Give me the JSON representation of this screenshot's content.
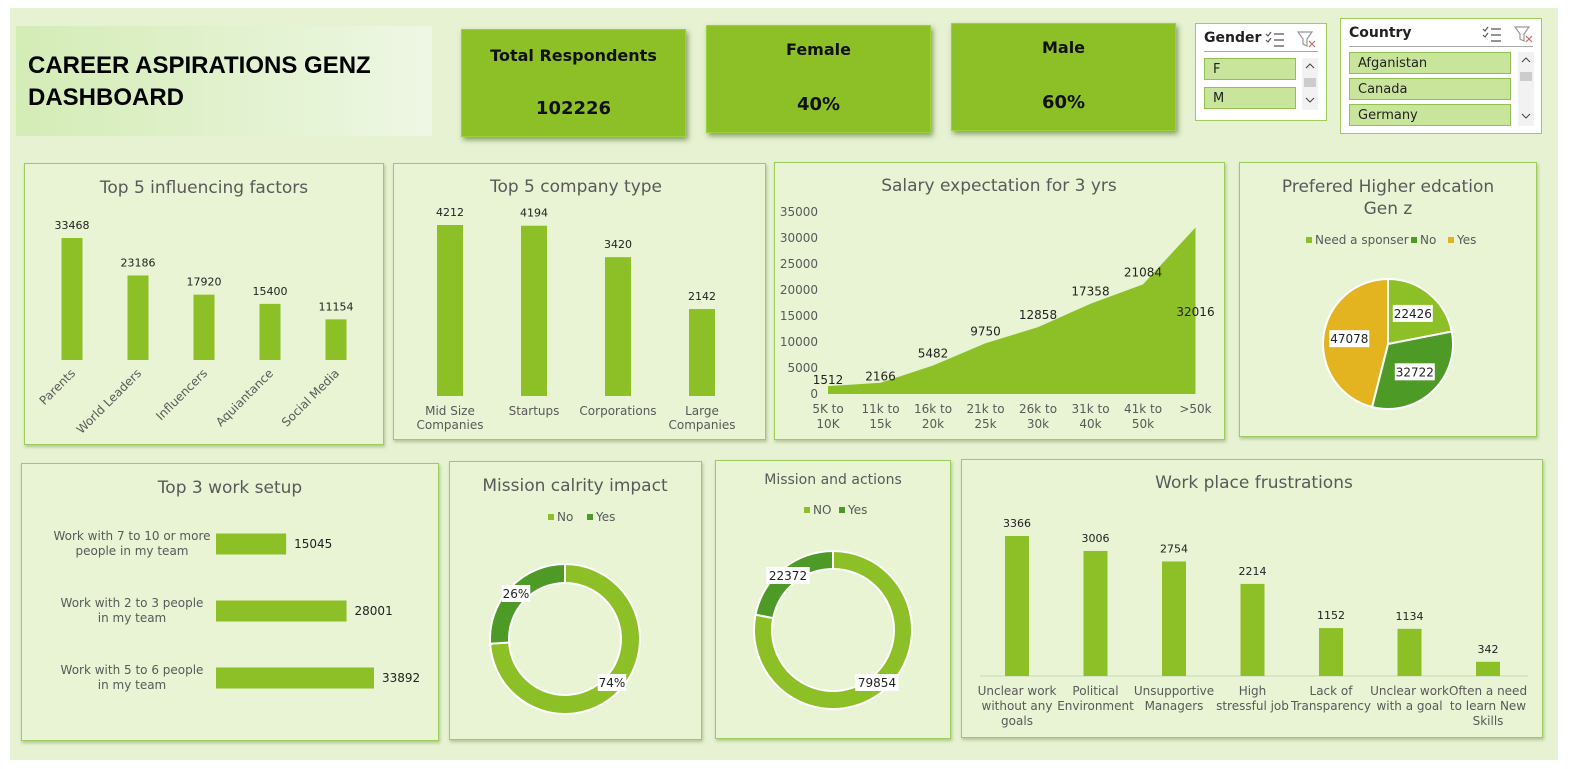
{
  "dashboard_title": "CAREER ASPIRATIONS GENZ DASHBOARD",
  "kpis": {
    "total": {
      "label": "Total Respondents",
      "value": "102226"
    },
    "female": {
      "label": "Female",
      "value": "40%"
    },
    "male": {
      "label": "Male",
      "value": "60%"
    }
  },
  "slicers": {
    "gender": {
      "title": "Gender",
      "items": [
        "F",
        "M"
      ]
    },
    "country": {
      "title": "Country",
      "items": [
        "Afganistan",
        "Canada",
        "Germany"
      ]
    }
  },
  "colors": {
    "bar": "#8dc026",
    "dark_green": "#4e9a26",
    "yellow": "#e3b320",
    "panel": "#e8f4d4"
  },
  "chart_data": [
    {
      "type": "bar",
      "title": "Top 5 influencing factors",
      "categories": [
        "Parents",
        "World Leaders",
        "Influencers",
        "Aquiantance",
        "Social Media"
      ],
      "values": [
        33468,
        23186,
        17920,
        15400,
        11154
      ]
    },
    {
      "type": "bar",
      "title": "Top 5 company type",
      "categories": [
        "Mid Size Companies",
        "Startups",
        "Corporations",
        "Large Companies"
      ],
      "values": [
        4212,
        4194,
        3420,
        2142
      ]
    },
    {
      "type": "area",
      "title": "Salary expectation for 3 yrs",
      "categories": [
        "5K to 10K",
        "11k to 15k",
        "16k to 20k",
        "21k to 25k",
        "26k to 30k",
        "31k to 40k",
        "41k to 50k",
        ">50k"
      ],
      "values": [
        1512,
        2166,
        5482,
        9750,
        12858,
        17358,
        21084,
        32016
      ],
      "y_ticks": [
        0,
        5000,
        10000,
        15000,
        20000,
        25000,
        30000,
        35000
      ],
      "ylim": [
        0,
        35000
      ]
    },
    {
      "type": "pie",
      "title": "Prefered Higher edcation Gen z",
      "legend": [
        "Need a sponser",
        "No",
        "Yes"
      ],
      "values": [
        22426,
        32722,
        47078
      ]
    },
    {
      "type": "bar",
      "orientation": "horizontal",
      "title": "Top 3 work setup",
      "categories": [
        "Work with 7 to 10 or more people in my team",
        "Work with 2 to 3 people in my team",
        "Work with 5 to 6 people in my team"
      ],
      "values": [
        15045,
        28001,
        33892
      ]
    },
    {
      "type": "pie",
      "subtype": "doughnut",
      "title": "Mission calrity impact",
      "legend": [
        "No",
        "Yes"
      ],
      "values": [
        74,
        26
      ],
      "labels": [
        "74%",
        "26%"
      ]
    },
    {
      "type": "pie",
      "subtype": "doughnut",
      "title": "Mission and actions",
      "legend": [
        "NO",
        "Yes"
      ],
      "values": [
        79854,
        22372
      ]
    },
    {
      "type": "bar",
      "title": "Work place frustrations",
      "categories": [
        "Unclear work without any goals",
        "Political Environment",
        "Unsupportive Managers",
        "High stressful job",
        "Lack of Transparency",
        "Unclear work with a goal",
        "Often a need to learn New Skills"
      ],
      "values": [
        3366,
        3006,
        2754,
        2214,
        1152,
        1134,
        342
      ]
    }
  ]
}
